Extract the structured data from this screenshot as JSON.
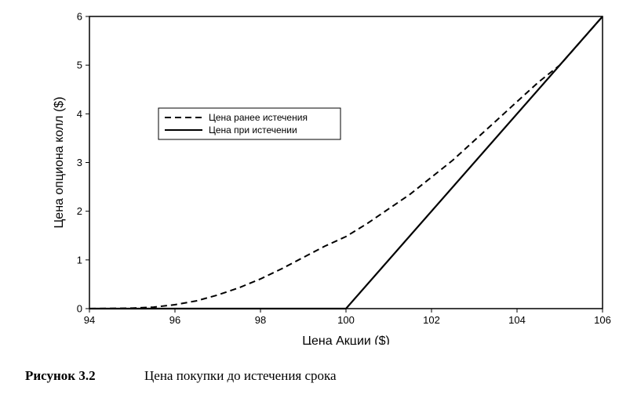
{
  "chart_data": {
    "type": "line",
    "xlabel": "Цена Акции ($)",
    "ylabel": "Цена опциона колл ($)",
    "xlim": [
      94,
      106
    ],
    "ylim": [
      0,
      6
    ],
    "xticks": [
      "94",
      "96",
      "98",
      "100",
      "102",
      "104",
      "106"
    ],
    "yticks": [
      "0",
      "1",
      "2",
      "3",
      "4",
      "5",
      "6"
    ],
    "grid": false,
    "legend_position": "left",
    "series": [
      {
        "name": "Цена ранее истечения",
        "style": "dashed",
        "x": [
          94,
          95,
          95.5,
          96,
          96.5,
          97,
          97.5,
          98,
          98.5,
          99,
          99.5,
          100,
          100.5,
          101,
          101.5,
          102,
          102.5,
          103,
          103.5,
          104,
          104.5,
          105,
          105.5,
          106
        ],
        "y": [
          0,
          0.01,
          0.03,
          0.08,
          0.16,
          0.28,
          0.43,
          0.61,
          0.82,
          1.05,
          1.28,
          1.48,
          1.75,
          2.05,
          2.35,
          2.7,
          3.05,
          3.45,
          3.85,
          4.25,
          4.65,
          5.0,
          5.5,
          6.0
        ]
      },
      {
        "name": "Цена при истечении",
        "style": "solid",
        "x": [
          94,
          100,
          106
        ],
        "y": [
          0,
          0,
          6
        ]
      }
    ]
  },
  "caption": {
    "figure_label": "Рисунок 3.2",
    "text": "Цена покупки до истечения срока"
  }
}
